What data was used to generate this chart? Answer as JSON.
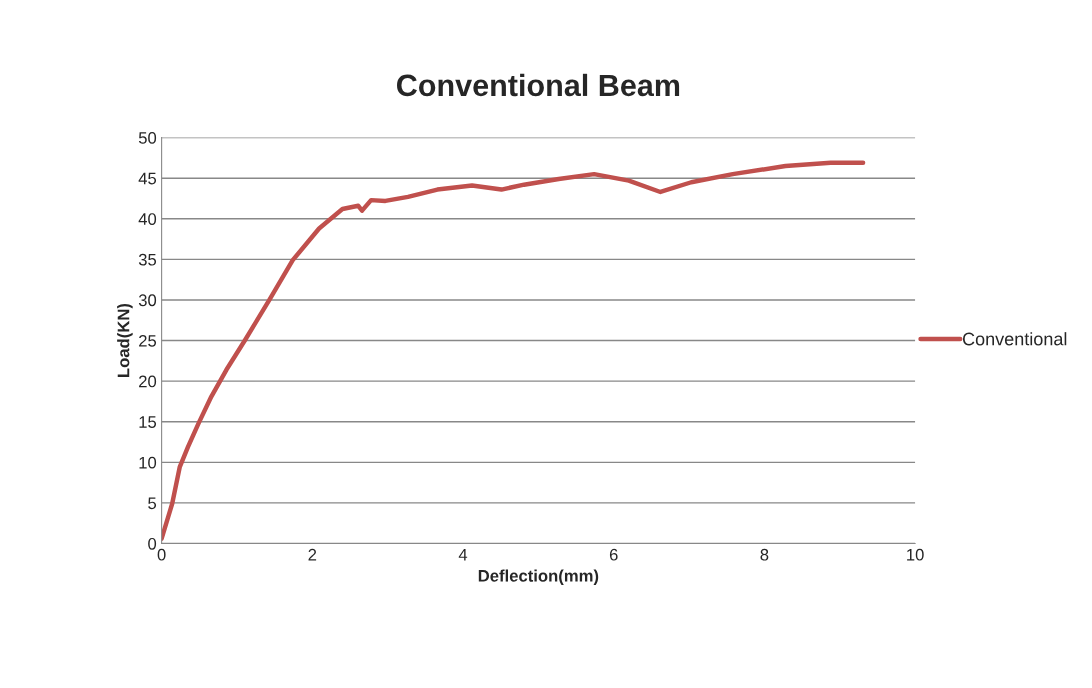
{
  "chart_data": {
    "type": "line",
    "title": "Conventional Beam",
    "xlabel": "Deflection(mm)",
    "ylabel": "Load(KN)",
    "xlim": [
      0,
      10
    ],
    "xticks": [
      0,
      2,
      4,
      6,
      8,
      10
    ],
    "ylim": [
      0,
      50
    ],
    "yticks": [
      0,
      5,
      10,
      15,
      20,
      25,
      30,
      35,
      40,
      45,
      50
    ],
    "grid": "y",
    "legend": "right",
    "marker": "none",
    "line_style": "solid",
    "series": [
      {
        "name": "Conventional",
        "color": "#c0504d",
        "x": [
          0,
          0.14,
          0.24,
          0.35,
          0.49,
          0.66,
          0.86,
          1.11,
          1.43,
          1.74,
          2.09,
          2.4,
          2.61,
          2.66,
          2.78,
          2.97,
          3.27,
          3.66,
          4.12,
          4.51,
          4.81,
          5.27,
          5.74,
          6.2,
          6.62,
          7.03,
          7.58,
          8.28,
          8.88,
          9.31
        ],
        "values": [
          0.6,
          4.9,
          9.4,
          11.9,
          14.8,
          18.1,
          21.4,
          25.1,
          30.0,
          34.9,
          38.8,
          41.2,
          41.6,
          41.0,
          42.3,
          42.2,
          42.7,
          43.6,
          44.1,
          43.6,
          44.2,
          44.9,
          45.5,
          44.7,
          43.3,
          44.5,
          45.5,
          46.5,
          46.9,
          46.9
        ]
      }
    ]
  }
}
